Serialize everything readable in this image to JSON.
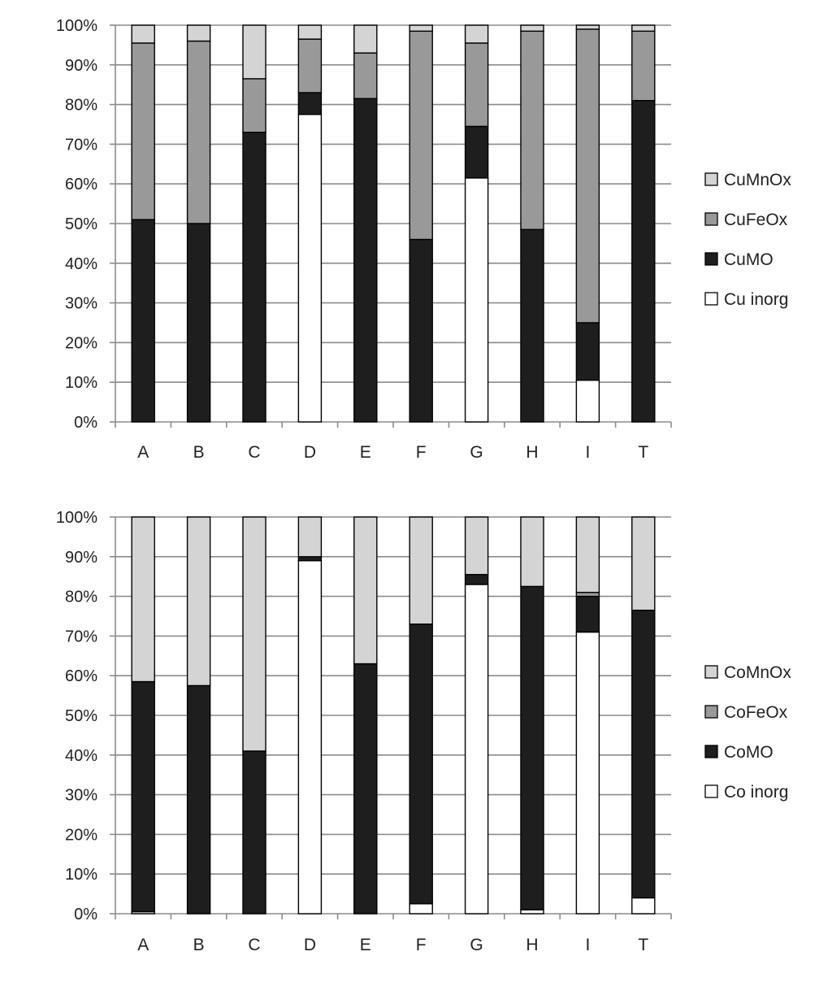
{
  "chart_data": [
    {
      "type": "bar",
      "stacked": true,
      "categories": [
        "A",
        "B",
        "C",
        "D",
        "E",
        "F",
        "G",
        "H",
        "I",
        "T"
      ],
      "ylim": [
        0,
        100
      ],
      "yticks": [
        "0%",
        "10%",
        "20%",
        "30%",
        "40%",
        "50%",
        "60%",
        "70%",
        "80%",
        "90%",
        "100%"
      ],
      "grid": true,
      "legend_position": "right",
      "series": [
        {
          "name": "Cu inorg",
          "color": "#ffffff",
          "values": [
            0,
            0,
            0,
            77.5,
            0,
            0,
            61.5,
            0,
            10.5,
            0
          ]
        },
        {
          "name": "CuMO",
          "color": "#1e1e1e",
          "values": [
            51,
            50,
            73,
            5.5,
            81.5,
            46,
            13,
            48.5,
            14.5,
            81
          ]
        },
        {
          "name": "CuFeOx",
          "color": "#999999",
          "values": [
            44.5,
            46,
            13.5,
            13.5,
            11.5,
            52.5,
            21,
            50,
            74,
            17.5
          ]
        },
        {
          "name": "CuMnOx",
          "color": "#d4d4d4",
          "values": [
            4.5,
            4,
            13.5,
            3.5,
            7,
            1.5,
            4.5,
            1.5,
            1,
            1.5
          ]
        }
      ],
      "legend_order": [
        "CuMnOx",
        "CuFeOx",
        "CuMO",
        "Cu inorg"
      ]
    },
    {
      "type": "bar",
      "stacked": true,
      "categories": [
        "A",
        "B",
        "C",
        "D",
        "E",
        "F",
        "G",
        "H",
        "I",
        "T"
      ],
      "ylim": [
        0,
        100
      ],
      "yticks": [
        "0%",
        "10%",
        "20%",
        "30%",
        "40%",
        "50%",
        "60%",
        "70%",
        "80%",
        "90%",
        "100%"
      ],
      "grid": true,
      "legend_position": "right",
      "series": [
        {
          "name": "Co inorg",
          "color": "#ffffff",
          "values": [
            0.5,
            0,
            0,
            89,
            0,
            2.5,
            83,
            1,
            71,
            4
          ]
        },
        {
          "name": "CoMO",
          "color": "#1e1e1e",
          "values": [
            58,
            57.5,
            41,
            1,
            63,
            70.5,
            2.5,
            81.5,
            9,
            72.5
          ]
        },
        {
          "name": "CoFeOx",
          "color": "#999999",
          "values": [
            0,
            0,
            0,
            0,
            0,
            0,
            0,
            0,
            1,
            0
          ]
        },
        {
          "name": "CoMnOx",
          "color": "#d4d4d4",
          "values": [
            41.5,
            42.5,
            59,
            10,
            37,
            27,
            14.5,
            17.5,
            19,
            23.5
          ]
        }
      ],
      "legend_order": [
        "CoMnOx",
        "CoFeOx",
        "CoMO",
        "Co inorg"
      ]
    }
  ]
}
